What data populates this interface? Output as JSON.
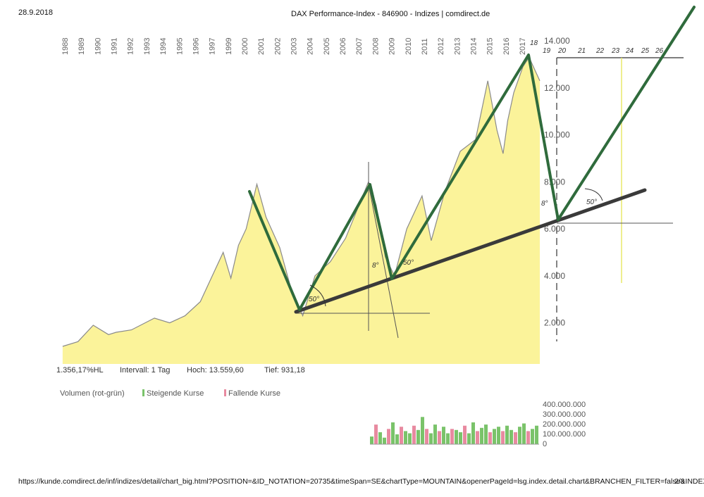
{
  "header": {
    "date": "28.9.2018",
    "title": "DAX Performance-Index - 846900 - Indizes | comdirect.de",
    "footer_url": "https://kunde.comdirect.de/inf/indizes/detail/chart_big.html?POSITION=&ID_NOTATION=20735&timeSpan=SE&chartType=MOUNTAIN&openerPageId=lsg.index.detail.chart&BRANCHEN_FILTER=false&INDEX_FIL...",
    "page": "2/3"
  },
  "stats": {
    "performance": "1.356,17%HL",
    "interval": "Intervall: 1 Tag",
    "high": "Hoch: 13.559,60",
    "low": "Tief: 931,18"
  },
  "legend": {
    "volume": "Volumen (rot-grün)",
    "rising": "Steigende Kurse",
    "falling": "Fallende Kurse",
    "rising_color": "#7ac36a",
    "falling_color": "#e88aa0"
  },
  "colors": {
    "fill": "#fbf39a",
    "line": "#8a8a8a",
    "trend": "#2f6b3c",
    "support": "#3a3a3a"
  },
  "chart_data": [
    {
      "type": "area",
      "title": "DAX Performance-Index - 846900",
      "x_ticks": [
        "1988",
        "1989",
        "1990",
        "1991",
        "1992",
        "1993",
        "1994",
        "1995",
        "1996",
        "1997",
        "1999",
        "2000",
        "2001",
        "2002",
        "2003",
        "2004",
        "2005",
        "2006",
        "2007",
        "2008",
        "2009",
        "2010",
        "2011",
        "2012",
        "2013",
        "2014",
        "2015",
        "2016",
        "2017"
      ],
      "y_ticks": [
        "2.000",
        "4.000",
        "6.000",
        "8.000",
        "10.000",
        "12.000",
        "14.000"
      ],
      "ylim": [
        1000,
        14000
      ],
      "xlim": [
        1987.0,
        2018.7
      ],
      "grid": false,
      "series": [
        {
          "x": [
            1987.5,
            1988.5,
            1989.5,
            1990.5,
            1991.0,
            1992.0,
            1993.5,
            1994.5,
            1995.5,
            1996.5,
            1997.5,
            1998.0,
            1998.5,
            1999.0,
            1999.5,
            2000.2,
            2000.8,
            2001.7,
            2002.5,
            2003.2,
            2004.0,
            2005.0,
            2006.0,
            2007.5,
            2008.0,
            2008.6,
            2009.2,
            2010.0,
            2011.0,
            2011.6,
            2012.5,
            2013.5,
            2014.5,
            2015.3,
            2015.9,
            2016.3,
            2016.6,
            2017.0,
            2017.6,
            2018.0,
            2018.7
          ],
          "values": [
            1000,
            1200,
            1900,
            1500,
            1600,
            1700,
            2200,
            2000,
            2300,
            2900,
            4300,
            5000,
            3900,
            5300,
            6000,
            7900,
            6500,
            5200,
            3300,
            2300,
            4000,
            4600,
            5600,
            8000,
            7000,
            4800,
            4000,
            6000,
            7400,
            5500,
            7600,
            9300,
            9800,
            12300,
            10200,
            9200,
            10600,
            11800,
            12900,
            13300,
            12300
          ]
        }
      ],
      "annotations": {
        "drawn_year_labels": [
          "18",
          "19",
          "20",
          "21",
          "22",
          "23",
          "24",
          "25",
          "26"
        ],
        "angle_labels": [
          "50°",
          "8°",
          "50°",
          "8°",
          "50°"
        ]
      }
    },
    {
      "type": "bar",
      "title": "Volumen",
      "y_ticks": [
        "400.000.000",
        "300.000.000",
        "200.000.000",
        "100.000.000",
        "0"
      ],
      "ylim": [
        0,
        400000000
      ],
      "values": [
        70000000,
        180000000,
        110000000,
        60000000,
        140000000,
        200000000,
        90000000,
        160000000,
        120000000,
        100000000,
        170000000,
        130000000,
        250000000,
        140000000,
        100000000,
        180000000,
        120000000,
        160000000,
        100000000,
        140000000,
        130000000,
        110000000,
        170000000,
        100000000,
        200000000,
        120000000,
        150000000,
        180000000,
        110000000,
        140000000,
        160000000,
        120000000,
        170000000,
        130000000,
        110000000,
        160000000,
        190000000,
        120000000,
        140000000,
        170000000
      ]
    }
  ]
}
